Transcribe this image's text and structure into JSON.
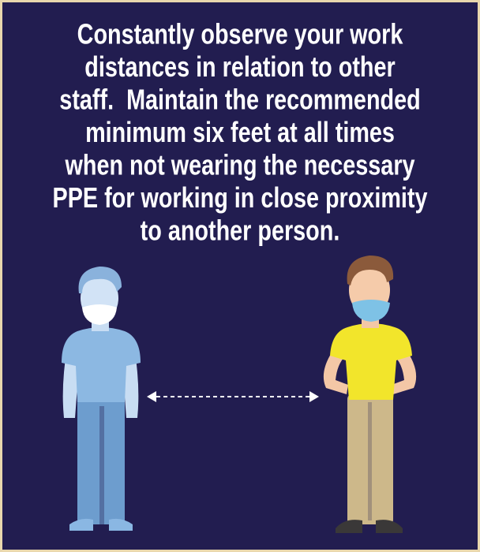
{
  "message": {
    "lines": [
      "Constantly observe your work",
      "distances in relation to other",
      "staff.  Maintain the recommended",
      "minimum six feet at all times",
      "when not wearing the necessary",
      "PPE for working in close proximity",
      "to another person."
    ]
  }
}
